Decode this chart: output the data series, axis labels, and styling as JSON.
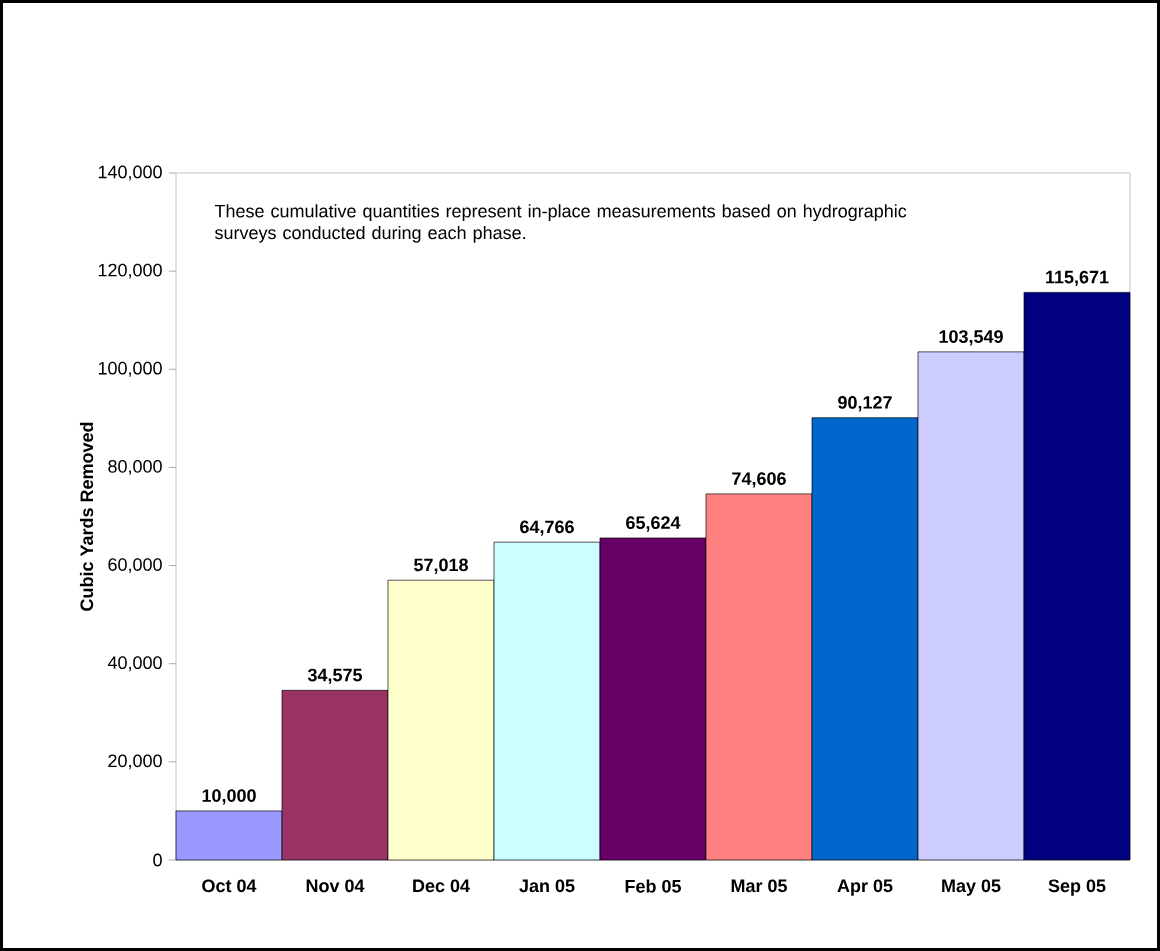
{
  "chart_data": {
    "type": "bar",
    "categories": [
      "Oct 04",
      "Nov 04",
      "Dec 04",
      "Jan 05",
      "Feb 05",
      "Mar 05",
      "Apr 05",
      "May 05",
      "Sep 05"
    ],
    "values": [
      10000,
      34575,
      57018,
      64766,
      65624,
      74606,
      90127,
      103549,
      115671
    ],
    "colors": [
      "#9999ff",
      "#993366",
      "#ffffcc",
      "#ccffff",
      "#660066",
      "#ff8080",
      "#0066cc",
      "#ccccff",
      "#000080"
    ],
    "value_labels": [
      "10,000",
      "34,575",
      "57,018",
      "64,766",
      "65,624",
      "74,606",
      "90,127",
      "103,549",
      "115,671"
    ],
    "ylabel": "Cubic Yards Removed",
    "annotations": [
      "These cumulative quantities represent in-place measurements based on hydrographic surveys conducted during each phase."
    ],
    "ylim": [
      0,
      140000
    ],
    "yticks": [
      {
        "value": 0,
        "label": "0"
      },
      {
        "value": 20000,
        "label": "20,000"
      },
      {
        "value": 40000,
        "label": "40,000"
      },
      {
        "value": 60000,
        "label": "60,000"
      },
      {
        "value": 80000,
        "label": "80,000"
      },
      {
        "value": 100000,
        "label": "100,000"
      },
      {
        "value": 120000,
        "label": "120,000"
      },
      {
        "value": 140000,
        "label": "140,000"
      }
    ]
  }
}
